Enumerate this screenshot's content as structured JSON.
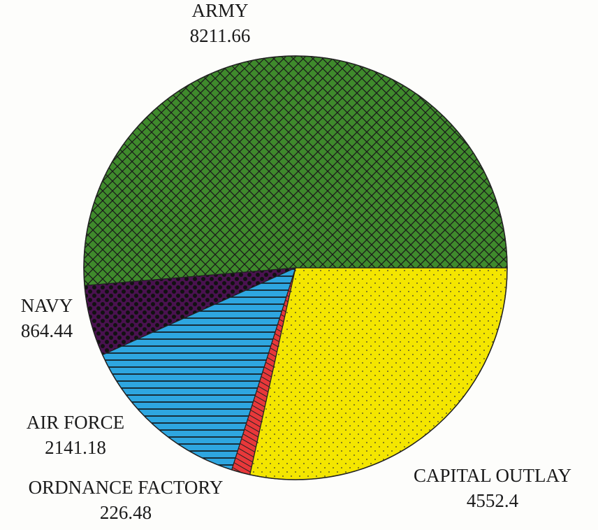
{
  "chart_data": {
    "type": "pie",
    "categories": [
      "CAPITAL OUTLAY",
      "ORDNANCE FACTORY",
      "AIR FORCE",
      "NAVY",
      "ARMY"
    ],
    "values": [
      4552.4,
      226.48,
      2141.18,
      864.44,
      8211.66
    ],
    "colors": [
      "#f4e600",
      "#e8383a",
      "#2ea6e0",
      "#4a1250",
      "#3f8a2c"
    ]
  }
}
